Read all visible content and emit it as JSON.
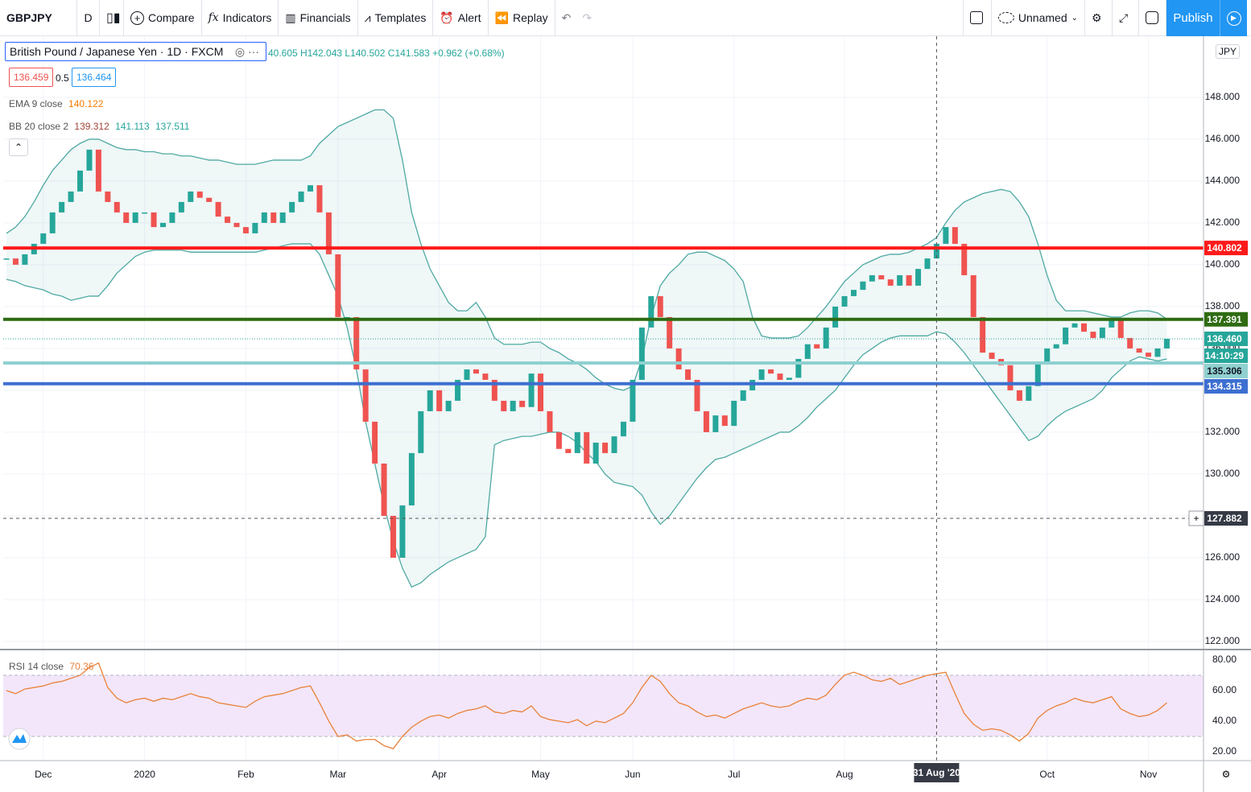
{
  "toolbar": {
    "symbol": "GBPJPY",
    "interval": "D",
    "compare": "Compare",
    "indicators": "Indicators",
    "financials": "Financials",
    "templates": "Templates",
    "alert": "Alert",
    "replay": "Replay",
    "layout": "Unnamed",
    "publish": "Publish"
  },
  "legend": {
    "title": "British Pound / Japanese Yen · 1D · FXCM",
    "ohlc": "40.605 H142.043 L140.502 C141.583 +0.962 (+0.68%)",
    "bid": "136.459",
    "spread": "0.5",
    "ask": "136.464",
    "ema_name": "EMA 9 close",
    "ema_value": "140.122",
    "bb_name": "BB 20 close 2",
    "bb_mid": "139.312",
    "bb_upper": "141.113",
    "bb_lower": "137.511",
    "currency": "JPY"
  },
  "chart_data": [
    {
      "type": "candlestick",
      "categories": [
        null,
        null,
        null,
        null,
        "Dec",
        null,
        null,
        null,
        null,
        null,
        null,
        null,
        null,
        null,
        null,
        "2020",
        null,
        null,
        null,
        null,
        null,
        null,
        null,
        null,
        null,
        null,
        "Feb",
        null,
        null,
        null,
        null,
        null,
        null,
        null,
        null,
        null,
        "Mar",
        null,
        null,
        null,
        null,
        null,
        null,
        null,
        null,
        null,
        null,
        "Apr",
        null,
        null,
        null,
        null,
        null,
        null,
        null,
        null,
        null,
        null,
        "May",
        null,
        null,
        null,
        null,
        null,
        null,
        null,
        null,
        null,
        "Jun",
        null,
        null,
        null,
        null,
        null,
        null,
        null,
        null,
        null,
        null,
        "Jul",
        null,
        null,
        null,
        null,
        null,
        null,
        null,
        null,
        null,
        null,
        null,
        "Aug",
        null,
        null,
        null,
        null,
        null,
        null,
        null,
        null,
        null,
        "31 Aug '20",
        null,
        null,
        null,
        null,
        null,
        null,
        null,
        null,
        null,
        null,
        null,
        "Oct",
        null,
        null,
        null,
        null,
        null,
        null,
        null,
        null,
        null,
        null,
        "Nov",
        null,
        null
      ],
      "values": [
        140.3,
        140.0,
        140.5,
        141.0,
        141.5,
        142.5,
        143.0,
        143.5,
        144.5,
        145.5,
        143.5,
        143.0,
        142.5,
        142.0,
        142.5,
        142.5,
        141.8,
        142.0,
        142.5,
        143.0,
        143.5,
        143.2,
        143.0,
        142.3,
        142.0,
        141.8,
        141.5,
        142.0,
        142.5,
        142.0,
        142.5,
        143.0,
        143.5,
        143.8,
        142.5,
        140.5,
        137.5,
        137.5,
        135.0,
        132.5,
        130.5,
        128.0,
        126.0,
        128.5,
        131.0,
        133.0,
        134.0,
        133.0,
        133.5,
        134.5,
        135.0,
        134.8,
        134.5,
        133.5,
        133.0,
        133.5,
        133.2,
        134.8,
        133.0,
        132.0,
        131.2,
        131.0,
        132.0,
        130.5,
        131.5,
        131.0,
        131.8,
        132.5,
        134.5,
        137.0,
        138.5,
        137.5,
        136.0,
        135.0,
        134.5,
        133.0,
        132.0,
        132.8,
        132.3,
        133.5,
        134.0,
        134.5,
        135.0,
        134.8,
        134.5,
        134.6,
        135.5,
        136.2,
        136.0,
        137.0,
        138.0,
        138.5,
        138.8,
        139.2,
        139.5,
        139.3,
        139.0,
        139.5,
        139.0,
        139.8,
        140.3,
        141.0,
        141.8,
        141.0,
        139.5,
        137.5,
        135.8,
        135.5,
        135.2,
        134.0,
        133.5,
        134.2,
        135.3,
        136.0,
        136.2,
        137.0,
        137.2,
        136.8,
        136.5,
        137.0,
        137.4,
        136.5,
        136.0,
        135.8,
        135.6,
        136.0,
        136.46
      ],
      "upper": [
        141.5,
        141.8,
        142.3,
        143,
        143.8,
        144.5,
        145,
        145.5,
        145.8,
        146,
        146,
        145.8,
        145.6,
        145.5,
        145.5,
        145.4,
        145.4,
        145.3,
        145.3,
        145.2,
        145.2,
        145.1,
        145,
        145,
        144.9,
        144.8,
        144.8,
        144.8,
        144.9,
        145,
        145,
        145,
        145,
        145.2,
        145.8,
        146.2,
        146.6,
        146.8,
        147,
        147.2,
        147.4,
        147.4,
        147,
        145,
        142.5,
        141,
        139.8,
        139,
        138.2,
        137.8,
        137.8,
        138.2,
        137.5,
        136.5,
        136.2,
        136.2,
        136.2,
        136.3,
        136.3,
        136,
        135.8,
        135.5,
        135.3,
        135,
        134.6,
        134.3,
        134.1,
        134,
        134.2,
        135.5,
        137.5,
        139,
        139.6,
        140,
        140.5,
        140.6,
        140.6,
        140.4,
        140.2,
        139.8,
        139.2,
        137.5,
        136.6,
        136.5,
        136.5,
        136.5,
        136.6,
        137,
        137.5,
        138,
        138.6,
        139.2,
        139.6,
        140,
        140.2,
        140.4,
        140.5,
        140.5,
        140.6,
        140.8,
        141,
        141.3,
        142,
        142.6,
        143,
        143.2,
        143.4,
        143.5,
        143.6,
        143.5,
        143,
        142.3,
        141,
        139.5,
        138.3,
        137.8,
        137.8,
        137.8,
        137.7,
        137.6,
        137.5,
        137.5,
        137.7,
        137.8,
        137.8,
        137.7,
        137.4
      ],
      "lower": [
        139.3,
        139.2,
        139,
        138.9,
        138.8,
        138.6,
        138.5,
        138.3,
        138.4,
        138.5,
        138.5,
        139,
        139.6,
        140,
        140.4,
        140.6,
        140.7,
        140.7,
        140.7,
        140.7,
        140.6,
        140.6,
        140.6,
        140.6,
        140.6,
        140.6,
        140.6,
        140.6,
        140.7,
        140.8,
        140.9,
        141,
        141,
        141,
        140.5,
        139.5,
        138.5,
        137,
        135,
        132.5,
        130.5,
        128.5,
        126.8,
        125.5,
        124.6,
        124.8,
        125.2,
        125.5,
        125.8,
        126,
        126.2,
        126.4,
        127,
        131.4,
        131.6,
        131.7,
        131.8,
        131.8,
        131.9,
        132,
        132,
        131.8,
        131.5,
        131,
        130.6,
        130,
        129.6,
        129.5,
        129.4,
        129,
        128.2,
        127.6,
        128,
        128.6,
        129.2,
        129.8,
        130.3,
        130.7,
        130.8,
        131,
        131.2,
        131.4,
        131.6,
        131.8,
        132,
        132,
        132.3,
        132.7,
        133.2,
        133.6,
        134,
        134.6,
        135.2,
        135.7,
        136,
        136.3,
        136.5,
        136.6,
        136.6,
        136.6,
        136.6,
        136.8,
        136.7,
        136.3,
        135.8,
        135.2,
        134.6,
        134,
        133.4,
        132.8,
        132.2,
        131.6,
        131.8,
        132.3,
        132.7,
        133,
        133.2,
        133.4,
        133.6,
        134,
        134.6,
        135,
        135.4,
        135.6,
        135.5,
        135.4,
        135.5
      ],
      "up_color": "#26a69a",
      "down_color": "#ef5350",
      "band_color": "#4fa9a2",
      "ylim": [
        121.69,
        150.92
      ],
      "yticks": [
        {
          "value": 122,
          "label": "122.000"
        },
        {
          "value": 124,
          "label": "124.000"
        },
        {
          "value": 126,
          "label": "126.000"
        },
        {
          "value": 128,
          "label": "128.000"
        },
        {
          "value": 130,
          "label": "130.000"
        },
        {
          "value": 132,
          "label": "132.000"
        },
        {
          "value": 134,
          "label": "134.000"
        },
        {
          "value": 136,
          "label": "136.000"
        },
        {
          "value": 138,
          "label": "138.000"
        },
        {
          "value": 140,
          "label": "140.000"
        },
        {
          "value": 142,
          "label": "142.000"
        },
        {
          "value": 144,
          "label": "144.000"
        },
        {
          "value": 146,
          "label": "146.000"
        },
        {
          "value": 148,
          "label": "148.000"
        }
      ],
      "hlines": [
        {
          "value": 140.802,
          "color": "#ff1a1a"
        },
        {
          "value": 137.391,
          "color": "#2e6b12"
        },
        {
          "value": 135.306,
          "color": "#8fd0d0"
        },
        {
          "value": 134.315,
          "color": "#3d6fd1"
        }
      ],
      "last": {
        "value": 136.46,
        "label": "136.460"
      },
      "countdown": "14:10:29",
      "crosshair": {
        "y": 127.882,
        "category": 101
      },
      "grid": true
    },
    {
      "type": "line",
      "name": "RSI 14 close",
      "value_label": "70.36",
      "color": "#e8823a",
      "values": [
        60,
        58,
        61,
        62,
        63,
        65,
        66,
        68,
        70,
        75,
        78,
        62,
        55,
        52,
        54,
        55,
        53,
        55,
        54,
        56,
        58,
        56,
        55,
        52,
        51,
        50,
        49,
        53,
        56,
        57,
        58,
        60,
        62,
        63,
        52,
        40,
        30,
        31,
        27,
        28,
        28,
        24,
        22,
        30,
        36,
        40,
        43,
        44,
        42,
        45,
        47,
        48,
        50,
        46,
        45,
        47,
        46,
        50,
        43,
        41,
        40,
        39,
        41,
        37,
        40,
        39,
        42,
        45,
        52,
        62,
        70,
        66,
        58,
        52,
        50,
        46,
        43,
        44,
        42,
        45,
        48,
        50,
        52,
        50,
        49,
        50,
        53,
        55,
        54,
        57,
        64,
        70,
        72,
        70,
        67,
        66,
        68,
        64,
        66,
        68,
        70,
        71,
        72,
        58,
        45,
        38,
        34,
        35,
        34,
        31,
        27,
        32,
        42,
        47,
        50,
        52,
        55,
        53,
        52,
        54,
        56,
        48,
        45,
        43,
        44,
        47,
        52
      ],
      "levels": [
        30,
        70
      ],
      "ylim": [
        14.2,
        86.3
      ],
      "yticks": [
        {
          "value": 20,
          "label": "20.00"
        },
        {
          "value": 40,
          "label": "40.00"
        },
        {
          "value": 60,
          "label": "60.00"
        },
        {
          "value": 80,
          "label": "80.00"
        }
      ]
    }
  ]
}
